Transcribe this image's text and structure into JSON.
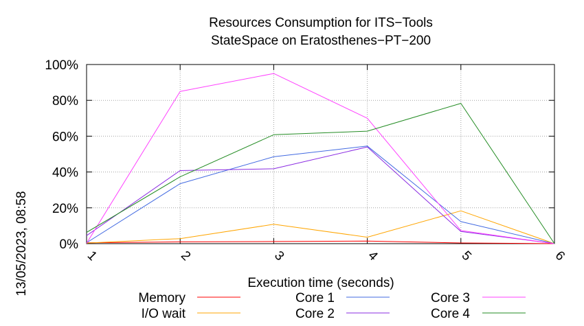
{
  "chart_data": {
    "type": "line",
    "title": "Resources Consumption for ITS−Tools",
    "subtitle": "StateSpace on Eratosthenes−PT−200",
    "xlabel": "Execution time (seconds)",
    "ylabel": "",
    "side_label": "13/05/2023, 08:58",
    "x": [
      1,
      2,
      3,
      4,
      5,
      6
    ],
    "x_tick_labels": [
      "1",
      "2",
      "3",
      "4",
      "5",
      "6"
    ],
    "xlim": [
      1,
      6
    ],
    "ylim": [
      0,
      100
    ],
    "y_tick_values": [
      0,
      20,
      40,
      60,
      80,
      100
    ],
    "y_tick_labels": [
      "0%",
      "20%",
      "40%",
      "60%",
      "80%",
      "100%"
    ],
    "grid": true,
    "legend_position": "bottom",
    "series": [
      {
        "name": "Memory",
        "color": "#ff0000",
        "values": [
          0.5,
          1,
          1.2,
          1.4,
          0.4,
          0
        ]
      },
      {
        "name": "I/O wait",
        "color": "#ffa500",
        "values": [
          0.3,
          2.8,
          10.8,
          3.6,
          18.3,
          0
        ]
      },
      {
        "name": "Core 1",
        "color": "#4169e1",
        "values": [
          0.5,
          33.5,
          48.5,
          54.5,
          12.3,
          0
        ]
      },
      {
        "name": "Core 2",
        "color": "#8a2be2",
        "values": [
          4.5,
          40.8,
          41.8,
          54,
          6.8,
          0
        ]
      },
      {
        "name": "Core 3",
        "color": "#ff40ff",
        "values": [
          0.2,
          85,
          95,
          70,
          7.3,
          0
        ]
      },
      {
        "name": "Core 4",
        "color": "#228b22",
        "values": [
          6.3,
          37.3,
          60.8,
          62.8,
          78.3,
          0
        ]
      }
    ]
  }
}
